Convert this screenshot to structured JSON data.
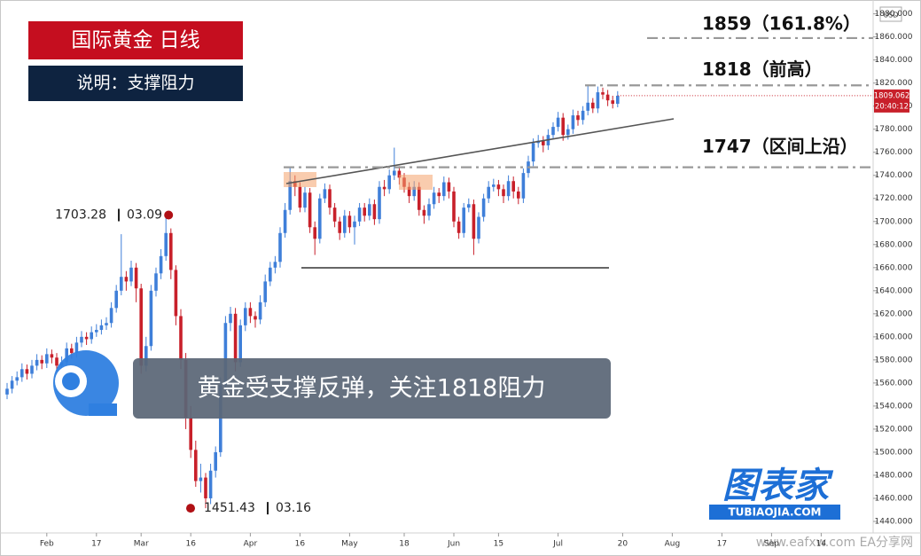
{
  "chart_data": {
    "type": "candlestick",
    "title": "国际黄金 日线",
    "subtitle": "说明：支撑阻力",
    "annotation": "黄金受支撑反弹，关注1818阻力",
    "currency": "USD",
    "last_price": 1809.062,
    "countdown": "20:40:12",
    "logo": "图表家",
    "logo_url": "TUBIAOJIA.COM",
    "watermark": "www.eafxw.com EA分享网",
    "up_color": "#3f7fd9",
    "down_color": "#c8202a",
    "ylim": [
      1430,
      1892
    ],
    "yticks": [
      {
        "value": 1440,
        "label": "1440.000"
      },
      {
        "value": 1460,
        "label": "1460.000"
      },
      {
        "value": 1480,
        "label": "1480.000"
      },
      {
        "value": 1500,
        "label": "1500.000"
      },
      {
        "value": 1520,
        "label": "1520.000"
      },
      {
        "value": 1540,
        "label": "1540.000"
      },
      {
        "value": 1560,
        "label": "1560.000"
      },
      {
        "value": 1580,
        "label": "1580.000"
      },
      {
        "value": 1600,
        "label": "1600.000"
      },
      {
        "value": 1620,
        "label": "1620.000"
      },
      {
        "value": 1640,
        "label": "1640.000"
      },
      {
        "value": 1660,
        "label": "1660.000"
      },
      {
        "value": 1680,
        "label": "1680.000"
      },
      {
        "value": 1700,
        "label": "1700.000"
      },
      {
        "value": 1720,
        "label": "1720.000"
      },
      {
        "value": 1740,
        "label": "1740.000"
      },
      {
        "value": 1760,
        "label": "1760.000"
      },
      {
        "value": 1780,
        "label": "1780.000"
      },
      {
        "value": 1800,
        "label": "1800.000"
      },
      {
        "value": 1820,
        "label": "1820.000"
      },
      {
        "value": 1840,
        "label": "1840.000"
      },
      {
        "value": 1860,
        "label": "1860.000"
      },
      {
        "value": 1880,
        "label": "1880.000"
      }
    ],
    "levels": [
      {
        "value": 1859,
        "label": "1859（161.8%）"
      },
      {
        "value": 1818,
        "label": "1818（前高）"
      },
      {
        "value": 1747,
        "label": "1747（区间上沿）"
      }
    ],
    "markers": [
      {
        "price": 1703.28,
        "date": "03.09"
      },
      {
        "price": 1451.43,
        "date": "03.16"
      }
    ],
    "categories": [
      null,
      null,
      null,
      null,
      null,
      null,
      null,
      null,
      "Feb",
      null,
      null,
      null,
      null,
      null,
      null,
      null,
      null,
      null,
      "17",
      null,
      null,
      null,
      null,
      null,
      null,
      null,
      null,
      "Mar",
      null,
      null,
      null,
      null,
      null,
      null,
      null,
      null,
      null,
      "16",
      null,
      null,
      null,
      null,
      null,
      null,
      null,
      null,
      null,
      null,
      null,
      "Apr",
      null,
      null,
      null,
      null,
      null,
      null,
      null,
      null,
      null,
      "16",
      null,
      null,
      null,
      null,
      null,
      null,
      null,
      null,
      null,
      "May",
      null,
      null,
      null,
      null,
      null,
      null,
      null,
      null,
      null,
      null,
      "18",
      null,
      null,
      null,
      null,
      null,
      null,
      null,
      null,
      null,
      "Jun",
      null,
      null,
      null,
      null,
      null,
      null,
      null,
      null,
      "15",
      null,
      null,
      null,
      null,
      null,
      null,
      null,
      null,
      null,
      null,
      null,
      "Jul",
      null,
      null,
      null,
      null,
      null,
      null,
      null,
      null,
      null,
      null,
      null,
      null,
      "20",
      null,
      null,
      null,
      null,
      null,
      null,
      null,
      null,
      null,
      "Aug",
      null,
      null,
      null,
      null,
      null,
      null,
      null,
      null,
      null,
      "17",
      null,
      null,
      null,
      null,
      null,
      null,
      null,
      null,
      null,
      "Sep",
      null,
      null,
      null,
      null,
      null,
      null,
      null,
      null,
      null,
      "14",
      null,
      null,
      null,
      null,
      null,
      null,
      null,
      null,
      null,
      null
    ],
    "ohlc": [
      [
        1550,
        1560,
        1546,
        1555
      ],
      [
        1555,
        1566,
        1551,
        1562
      ],
      [
        1562,
        1570,
        1558,
        1565
      ],
      [
        1565,
        1577,
        1561,
        1572
      ],
      [
        1572,
        1576,
        1563,
        1568
      ],
      [
        1568,
        1580,
        1564,
        1575
      ],
      [
        1575,
        1585,
        1571,
        1580
      ],
      [
        1580,
        1584,
        1572,
        1577
      ],
      [
        1577,
        1590,
        1573,
        1585
      ],
      [
        1585,
        1589,
        1577,
        1582
      ],
      [
        1582,
        1586,
        1570,
        1575
      ],
      [
        1575,
        1583,
        1571,
        1578
      ],
      [
        1578,
        1595,
        1574,
        1590
      ],
      [
        1590,
        1594,
        1581,
        1586
      ],
      [
        1586,
        1600,
        1582,
        1595
      ],
      [
        1595,
        1605,
        1591,
        1600
      ],
      [
        1600,
        1604,
        1593,
        1598
      ],
      [
        1598,
        1609,
        1594,
        1604
      ],
      [
        1604,
        1611,
        1600,
        1606
      ],
      [
        1606,
        1615,
        1602,
        1610
      ],
      [
        1610,
        1617,
        1606,
        1612
      ],
      [
        1612,
        1630,
        1608,
        1625
      ],
      [
        1625,
        1645,
        1621,
        1640
      ],
      [
        1640,
        1689,
        1636,
        1652
      ],
      [
        1652,
        1657,
        1640,
        1648
      ],
      [
        1648,
        1666,
        1644,
        1660
      ],
      [
        1660,
        1664,
        1630,
        1642
      ],
      [
        1642,
        1646,
        1568,
        1575
      ],
      [
        1575,
        1600,
        1570,
        1592
      ],
      [
        1592,
        1645,
        1588,
        1640
      ],
      [
        1640,
        1660,
        1635,
        1655
      ],
      [
        1655,
        1676,
        1650,
        1670
      ],
      [
        1670,
        1703.28,
        1666,
        1690
      ],
      [
        1690,
        1694,
        1650,
        1658
      ],
      [
        1658,
        1662,
        1610,
        1618
      ],
      [
        1618,
        1624,
        1572,
        1580
      ],
      [
        1580,
        1586,
        1520,
        1530
      ],
      [
        1530,
        1540,
        1495,
        1502
      ],
      [
        1502,
        1510,
        1470,
        1475
      ],
      [
        1475,
        1490,
        1465,
        1478
      ],
      [
        1478,
        1482,
        1451.43,
        1460
      ],
      [
        1460,
        1490,
        1455,
        1484
      ],
      [
        1484,
        1505,
        1478,
        1500
      ],
      [
        1500,
        1565,
        1496,
        1558
      ],
      [
        1558,
        1618,
        1553,
        1612
      ],
      [
        1612,
        1626,
        1605,
        1620
      ],
      [
        1620,
        1625,
        1570,
        1578
      ],
      [
        1578,
        1615,
        1574,
        1610
      ],
      [
        1610,
        1630,
        1605,
        1625
      ],
      [
        1625,
        1630,
        1612,
        1618
      ],
      [
        1618,
        1622,
        1608,
        1615
      ],
      [
        1615,
        1636,
        1611,
        1630
      ],
      [
        1630,
        1654,
        1626,
        1648
      ],
      [
        1648,
        1665,
        1644,
        1660
      ],
      [
        1660,
        1670,
        1655,
        1665
      ],
      [
        1665,
        1695,
        1660,
        1690
      ],
      [
        1690,
        1716,
        1686,
        1710
      ],
      [
        1710,
        1747,
        1706,
        1735
      ],
      [
        1735,
        1740,
        1722,
        1730
      ],
      [
        1730,
        1734,
        1708,
        1712
      ],
      [
        1712,
        1730,
        1708,
        1725
      ],
      [
        1725,
        1729,
        1690,
        1695
      ],
      [
        1695,
        1700,
        1671,
        1685
      ],
      [
        1685,
        1724,
        1681,
        1720
      ],
      [
        1720,
        1733,
        1716,
        1728
      ],
      [
        1728,
        1732,
        1706,
        1712
      ],
      [
        1712,
        1716,
        1695,
        1700
      ],
      [
        1700,
        1704,
        1684,
        1690
      ],
      [
        1690,
        1710,
        1686,
        1705
      ],
      [
        1705,
        1709,
        1690,
        1695
      ],
      [
        1695,
        1705,
        1680,
        1700
      ],
      [
        1700,
        1716,
        1696,
        1712
      ],
      [
        1712,
        1716,
        1700,
        1705
      ],
      [
        1705,
        1720,
        1701,
        1715
      ],
      [
        1715,
        1719,
        1697,
        1702
      ],
      [
        1702,
        1735,
        1698,
        1730
      ],
      [
        1730,
        1736,
        1722,
        1728
      ],
      [
        1728,
        1745,
        1724,
        1740
      ],
      [
        1740,
        1764,
        1736,
        1744
      ],
      [
        1744,
        1748,
        1732,
        1738
      ],
      [
        1738,
        1742,
        1725,
        1730
      ],
      [
        1730,
        1734,
        1716,
        1722
      ],
      [
        1722,
        1735,
        1718,
        1730
      ],
      [
        1730,
        1734,
        1705,
        1710
      ],
      [
        1710,
        1714,
        1698,
        1705
      ],
      [
        1705,
        1720,
        1701,
        1715
      ],
      [
        1715,
        1730,
        1711,
        1725
      ],
      [
        1725,
        1729,
        1716,
        1722
      ],
      [
        1722,
        1739,
        1718,
        1734
      ],
      [
        1734,
        1738,
        1720,
        1726
      ],
      [
        1726,
        1730,
        1695,
        1700
      ],
      [
        1700,
        1704,
        1685,
        1690
      ],
      [
        1690,
        1716,
        1686,
        1712
      ],
      [
        1712,
        1720,
        1708,
        1715
      ],
      [
        1715,
        1719,
        1671,
        1685
      ],
      [
        1685,
        1708,
        1681,
        1704
      ],
      [
        1704,
        1724,
        1700,
        1720
      ],
      [
        1720,
        1735,
        1716,
        1730
      ],
      [
        1730,
        1737,
        1726,
        1732
      ],
      [
        1732,
        1736,
        1722,
        1728
      ],
      [
        1728,
        1732,
        1716,
        1722
      ],
      [
        1722,
        1740,
        1718,
        1735
      ],
      [
        1735,
        1739,
        1720,
        1726
      ],
      [
        1726,
        1730,
        1715,
        1720
      ],
      [
        1720,
        1746,
        1716,
        1742
      ],
      [
        1742,
        1757,
        1738,
        1752
      ],
      [
        1752,
        1772,
        1748,
        1768
      ],
      [
        1768,
        1775,
        1764,
        1770
      ],
      [
        1770,
        1774,
        1760,
        1766
      ],
      [
        1766,
        1780,
        1762,
        1775
      ],
      [
        1775,
        1786,
        1771,
        1782
      ],
      [
        1782,
        1795,
        1778,
        1790
      ],
      [
        1790,
        1794,
        1770,
        1775
      ],
      [
        1775,
        1784,
        1771,
        1780
      ],
      [
        1780,
        1797,
        1776,
        1792
      ],
      [
        1792,
        1796,
        1783,
        1788
      ],
      [
        1788,
        1800,
        1784,
        1796
      ],
      [
        1796,
        1818,
        1792,
        1803
      ],
      [
        1803,
        1807,
        1794,
        1798
      ],
      [
        1798,
        1817,
        1794,
        1812
      ],
      [
        1812,
        1816,
        1806,
        1810
      ],
      [
        1810,
        1814,
        1800,
        1805
      ],
      [
        1805,
        1809,
        1798,
        1802
      ],
      [
        1802,
        1813,
        1799,
        1809
      ],
      null,
      null,
      null,
      null,
      null,
      null,
      null,
      null,
      null,
      null,
      null,
      null,
      null,
      null,
      null,
      null,
      null,
      null,
      null,
      null,
      null,
      null,
      null,
      null,
      null,
      null,
      null,
      null,
      null,
      null,
      null,
      null,
      null,
      null,
      null,
      null,
      null,
      null,
      null,
      null,
      null,
      null,
      null,
      null,
      null,
      null,
      null,
      null,
      null,
      null,
      null
    ]
  }
}
